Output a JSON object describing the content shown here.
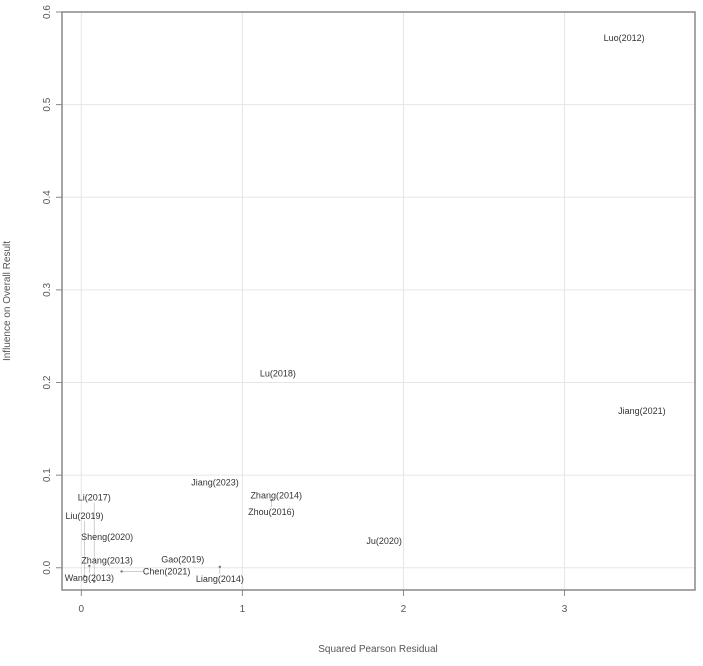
{
  "chart_data": {
    "type": "scatter",
    "title": "",
    "xlabel": "Squared Pearson Residual",
    "ylabel": "Influence on Overall Result",
    "xlim": [
      -0.12,
      3.81
    ],
    "ylim": [
      -0.024,
      0.6
    ],
    "xticks": [
      0,
      1,
      2,
      3
    ],
    "yticks": [
      0.0,
      0.1,
      0.2,
      0.3,
      0.4,
      0.5,
      0.6
    ],
    "grid": true,
    "points": [
      {
        "label": "Luo(2012)",
        "x": 3.37,
        "y": 0.572
      },
      {
        "label": "Jiang(2021)",
        "x": 3.48,
        "y": 0.169
      },
      {
        "label": "Lu(2018)",
        "x": 1.22,
        "y": 0.21
      },
      {
        "label": "Jiang(2023)",
        "x": 0.83,
        "y": 0.092
      },
      {
        "label": "Zhang(2014)",
        "x": 1.21,
        "y": 0.078
      },
      {
        "label": "Zhou(2016)",
        "x": 1.18,
        "y": 0.073
      },
      {
        "label": "Ju(2020)",
        "x": 1.88,
        "y": 0.029
      },
      {
        "label": "Sheng(2020)",
        "x": 0.16,
        "y": 0.033
      },
      {
        "label": "Gao(2019)",
        "x": 0.63,
        "y": 0.009
      },
      {
        "label": "Liang(2014)",
        "x": 0.86,
        "y": 0.001
      },
      {
        "label": "Zhang(2013)",
        "x": 0.16,
        "y": 0.008
      },
      {
        "label": "Wang(2013)",
        "x": 0.05,
        "y": 0.002
      },
      {
        "label": "Chen(2021)",
        "x": 0.25,
        "y": -0.004
      },
      {
        "label": "Liu(2019)",
        "x": 0.02,
        "y": -0.009
      },
      {
        "label": "Li(2017)",
        "x": 0.08,
        "y": -0.015
      }
    ]
  }
}
